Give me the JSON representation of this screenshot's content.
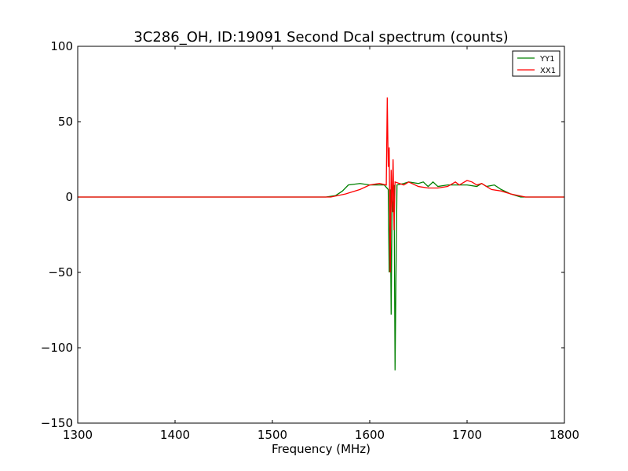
{
  "chart_data": {
    "type": "line",
    "title": "3C286_OH, ID:19091 Second Dcal spectrum (counts)",
    "xlabel": "Frequency (MHz)",
    "ylabel": "",
    "xlim": [
      1300,
      1800
    ],
    "ylim": [
      -150,
      100
    ],
    "xticks": [
      1300,
      1400,
      1500,
      1600,
      1700,
      1800
    ],
    "yticks": [
      -150,
      -100,
      -50,
      0,
      50,
      100
    ],
    "ytick_labels": [
      "−150",
      "−100",
      "−50",
      "0",
      "50",
      "100"
    ],
    "grid": false,
    "legend_position": "top-right",
    "series": [
      {
        "name": "YY1",
        "color": "#008000",
        "points": [
          [
            1300,
            0
          ],
          [
            1555,
            0
          ],
          [
            1565,
            1
          ],
          [
            1572,
            4
          ],
          [
            1578,
            8
          ],
          [
            1590,
            9
          ],
          [
            1600,
            8
          ],
          [
            1610,
            8
          ],
          [
            1615,
            8
          ],
          [
            1619,
            5
          ],
          [
            1620,
            -50
          ],
          [
            1621,
            5
          ],
          [
            1622,
            -78
          ],
          [
            1623,
            0
          ],
          [
            1624,
            -10
          ],
          [
            1625,
            8
          ],
          [
            1626,
            -115
          ],
          [
            1627,
            -50
          ],
          [
            1628,
            8
          ],
          [
            1635,
            9
          ],
          [
            1640,
            10
          ],
          [
            1650,
            9
          ],
          [
            1655,
            10
          ],
          [
            1660,
            7
          ],
          [
            1665,
            10
          ],
          [
            1670,
            7
          ],
          [
            1680,
            8
          ],
          [
            1690,
            8
          ],
          [
            1700,
            8
          ],
          [
            1710,
            7
          ],
          [
            1715,
            9
          ],
          [
            1720,
            7
          ],
          [
            1728,
            8
          ],
          [
            1735,
            5
          ],
          [
            1745,
            2
          ],
          [
            1755,
            0
          ],
          [
            1800,
            0
          ]
        ]
      },
      {
        "name": "XX1",
        "color": "#ff0000",
        "points": [
          [
            1300,
            0
          ],
          [
            1540,
            0
          ],
          [
            1560,
            0
          ],
          [
            1575,
            2
          ],
          [
            1590,
            5
          ],
          [
            1600,
            8
          ],
          [
            1610,
            9
          ],
          [
            1617,
            8
          ],
          [
            1618,
            66
          ],
          [
            1619,
            20
          ],
          [
            1620,
            33
          ],
          [
            1621,
            -50
          ],
          [
            1622,
            18
          ],
          [
            1623,
            -10
          ],
          [
            1624,
            25
          ],
          [
            1625,
            -22
          ],
          [
            1626,
            10
          ],
          [
            1635,
            8
          ],
          [
            1640,
            10
          ],
          [
            1650,
            7
          ],
          [
            1660,
            6
          ],
          [
            1670,
            6
          ],
          [
            1680,
            7
          ],
          [
            1688,
            10
          ],
          [
            1692,
            8
          ],
          [
            1700,
            11
          ],
          [
            1705,
            10
          ],
          [
            1710,
            8
          ],
          [
            1715,
            9
          ],
          [
            1720,
            7
          ],
          [
            1725,
            5
          ],
          [
            1735,
            4
          ],
          [
            1745,
            2
          ],
          [
            1760,
            0
          ],
          [
            1800,
            0
          ]
        ]
      }
    ]
  }
}
